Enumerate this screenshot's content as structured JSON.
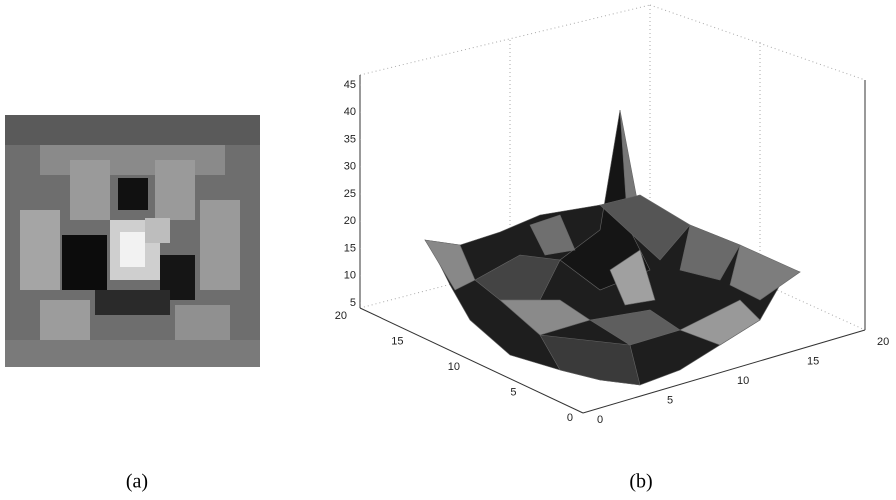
{
  "figure_a": {
    "caption": "(a)"
  },
  "figure_b": {
    "caption": "(b)",
    "zticks": [
      5,
      10,
      15,
      20,
      25,
      30,
      35,
      40,
      45
    ],
    "yticks": [
      0,
      5,
      10,
      15,
      20
    ],
    "xticks": [
      0,
      5,
      10,
      15,
      20
    ]
  }
}
